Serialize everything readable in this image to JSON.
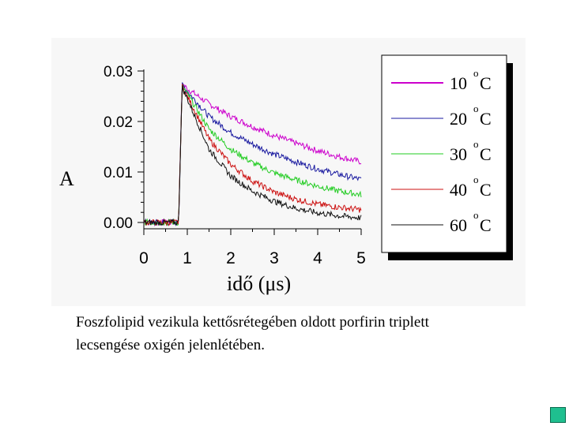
{
  "chart_data": {
    "type": "line",
    "ylabel": "A",
    "xlabel": "idő (μs)",
    "xlim": [
      0,
      5
    ],
    "ylim": [
      -0.001,
      0.03
    ],
    "x_ticks": [
      "0",
      "1",
      "2",
      "3",
      "4",
      "5"
    ],
    "y_ticks": [
      "0.00",
      "0.01",
      "0.02",
      "0.03"
    ],
    "grid": false,
    "legend_position": "right",
    "series": [
      {
        "name": "10 °C",
        "name_value": "10",
        "name_unit": "C",
        "color": "#cc00cc",
        "x": [
          0,
          0.4,
          0.8,
          0.88,
          1.0,
          1.5,
          2.0,
          2.5,
          3.0,
          3.5,
          4.0,
          4.5,
          5.0
        ],
        "y": [
          0.0,
          0.0,
          0.0,
          0.0275,
          0.0265,
          0.0235,
          0.021,
          0.019,
          0.0172,
          0.0157,
          0.0142,
          0.013,
          0.012
        ]
      },
      {
        "name": "20 °C",
        "name_value": "20",
        "name_unit": "C",
        "color": "#1a1aa0",
        "x": [
          0,
          0.4,
          0.8,
          0.88,
          1.0,
          1.5,
          2.0,
          2.5,
          3.0,
          3.5,
          4.0,
          4.5,
          5.0
        ],
        "y": [
          0.0,
          0.0,
          0.0,
          0.0272,
          0.026,
          0.021,
          0.0178,
          0.0155,
          0.0135,
          0.012,
          0.0106,
          0.0095,
          0.0085
        ]
      },
      {
        "name": "30 °C",
        "name_value": "30",
        "name_unit": "C",
        "color": "#22cc22",
        "x": [
          0,
          0.4,
          0.8,
          0.88,
          1.0,
          1.5,
          2.0,
          2.5,
          3.0,
          3.5,
          4.0,
          4.5,
          5.0
        ],
        "y": [
          0.0,
          0.0,
          0.0,
          0.027,
          0.0255,
          0.0185,
          0.0145,
          0.0118,
          0.0098,
          0.0084,
          0.0072,
          0.0062,
          0.0055
        ]
      },
      {
        "name": "40 °C",
        "name_value": "40",
        "name_unit": "C",
        "color": "#cc1111",
        "x": [
          0,
          0.4,
          0.8,
          0.88,
          1.0,
          1.5,
          2.0,
          2.5,
          3.0,
          3.5,
          4.0,
          4.5,
          5.0
        ],
        "y": [
          0.0,
          0.0,
          0.0,
          0.027,
          0.025,
          0.0165,
          0.0115,
          0.0082,
          0.006,
          0.0046,
          0.0036,
          0.003,
          0.0025
        ]
      },
      {
        "name": "60 °C",
        "name_value": "60",
        "name_unit": "C",
        "color": "#111111",
        "x": [
          0,
          0.4,
          0.8,
          0.88,
          1.0,
          1.5,
          2.0,
          2.5,
          3.0,
          3.5,
          4.0,
          4.5,
          5.0
        ],
        "y": [
          0.0,
          0.0,
          0.0,
          0.0268,
          0.0245,
          0.0145,
          0.0092,
          0.0062,
          0.0042,
          0.0028,
          0.0019,
          0.0013,
          0.0009
        ]
      }
    ]
  },
  "caption": {
    "line1": "Foszfolipid vezikula kettősrétegében oldott porfirin triplett",
    "line2": "lecsengése oxigén jelenlétében."
  },
  "nav": {
    "icon": "green-square",
    "color": "#1fbf8f"
  }
}
